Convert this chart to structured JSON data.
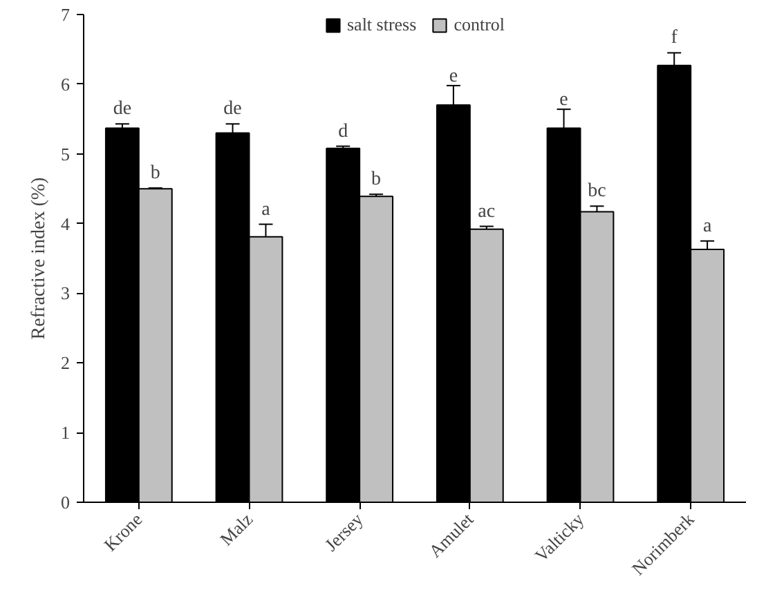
{
  "chart_data": {
    "type": "bar",
    "ylabel": "Refractive index (%)",
    "categories": [
      "Krone",
      "Malz",
      "Jersey",
      "Amulet",
      "Valticky",
      "Norimberk"
    ],
    "series": [
      {
        "name": "salt stress",
        "color": "#000000",
        "values": [
          5.37,
          5.3,
          5.08,
          5.7,
          5.37,
          6.27
        ],
        "errors": [
          0.06,
          0.13,
          0.03,
          0.28,
          0.27,
          0.18
        ],
        "value_labels": [
          "de",
          "de",
          "d",
          "e",
          "e",
          "f"
        ]
      },
      {
        "name": "control",
        "color": "#c0c0c0",
        "values": [
          4.5,
          3.81,
          4.39,
          3.92,
          4.17,
          3.63
        ],
        "errors": [
          0.01,
          0.18,
          0.03,
          0.04,
          0.08,
          0.12
        ],
        "value_labels": [
          "b",
          "a",
          "b",
          "ac",
          "bc",
          "a"
        ]
      }
    ],
    "ylim": [
      0,
      7
    ],
    "yticks": [
      0,
      1,
      2,
      3,
      4,
      5,
      6,
      7
    ],
    "grid": false,
    "legend": "top"
  }
}
